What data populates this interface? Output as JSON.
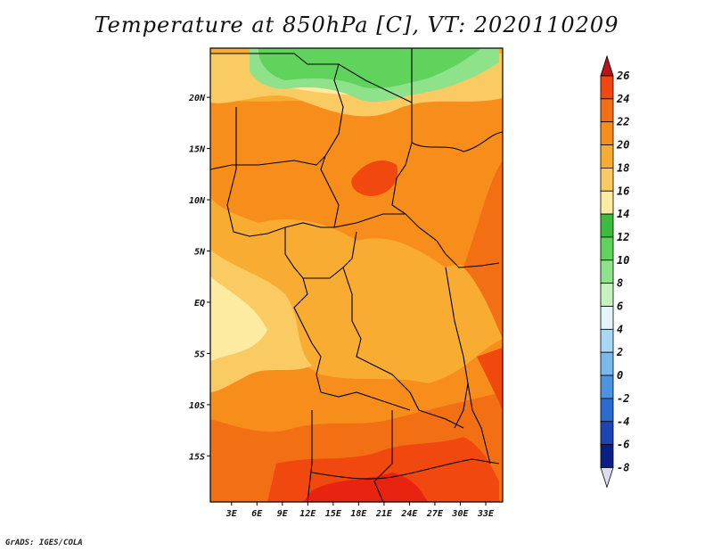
{
  "title": "Temperature at 850hPa [C], VT: 2020110209",
  "footer": "GrADS: IGES/COLA",
  "map": {
    "lat_ticks": [
      {
        "label": "20N",
        "value": 20
      },
      {
        "label": "15N",
        "value": 15
      },
      {
        "label": "10N",
        "value": 10
      },
      {
        "label": "5N",
        "value": 5
      },
      {
        "label": "EQ",
        "value": 0
      },
      {
        "label": "5S",
        "value": -5
      },
      {
        "label": "10S",
        "value": -10
      },
      {
        "label": "15S",
        "value": -15
      }
    ],
    "lon_ticks": [
      {
        "label": "3E",
        "value": 3
      },
      {
        "label": "6E",
        "value": 6
      },
      {
        "label": "9E",
        "value": 9
      },
      {
        "label": "12E",
        "value": 12
      },
      {
        "label": "15E",
        "value": 15
      },
      {
        "label": "18E",
        "value": 18
      },
      {
        "label": "21E",
        "value": 21
      },
      {
        "label": "24E",
        "value": 24
      },
      {
        "label": "27E",
        "value": 27
      },
      {
        "label": "30E",
        "value": 30
      },
      {
        "label": "33E",
        "value": 33
      }
    ],
    "lon_range": [
      0.5,
      35
    ],
    "lat_range": [
      -19.5,
      24.8
    ]
  },
  "colorbar": {
    "labels": [
      "26",
      "24",
      "22",
      "20",
      "18",
      "16",
      "14",
      "12",
      "10",
      "8",
      "6",
      "4",
      "2",
      "0",
      "-2",
      "-4",
      "-6",
      "-8"
    ],
    "top_arrow_color": "#b8141a",
    "bottom_arrow_color": "#dcdcf5",
    "colors": [
      "#e8230f",
      "#f0480f",
      "#f26f14",
      "#f78e1b",
      "#f8ad32",
      "#fbcb63",
      "#fdeba2",
      "#3cbc3c",
      "#5fd35c",
      "#8ee28a",
      "#c6f2c0",
      "#e3f5fb",
      "#a9d8f5",
      "#7ab9ec",
      "#4d94e0",
      "#2a6bd2",
      "#1b45b4",
      "#0b1e86"
    ]
  }
}
